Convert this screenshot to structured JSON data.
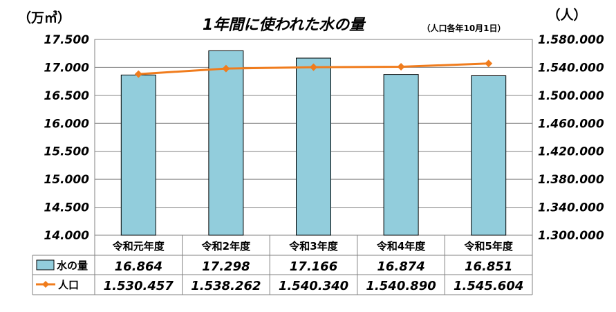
{
  "chart_data": {
    "type": "bar+line",
    "title": "1年間に使われた水の量",
    "subtitle": "（人口各年10月1日）",
    "left_unit": "（万㎥）",
    "right_unit": "（人）",
    "categories": [
      "令和元年度",
      "令和2年度",
      "令和3年度",
      "令和4年度",
      "令和5年度"
    ],
    "y_left": {
      "min": 14000,
      "max": 17500,
      "ticks": [
        "14.000",
        "14.500",
        "15.000",
        "15.500",
        "16.000",
        "16.500",
        "17.000",
        "17.500"
      ]
    },
    "y_right": {
      "min": 1300000,
      "max": 1580000,
      "ticks": [
        "1.300.000",
        "1.340.000",
        "1.380.000",
        "1.420.000",
        "1.460.000",
        "1.500.000",
        "1.540.000",
        "1.580.000"
      ]
    },
    "grid": true,
    "series": [
      {
        "name": "水の量",
        "kind": "bar",
        "axis": "left",
        "color": "#92cddc",
        "values": [
          16864,
          17298,
          17166,
          16874,
          16851
        ],
        "labels": [
          "16.864",
          "17.298",
          "17.166",
          "16.874",
          "16.851"
        ]
      },
      {
        "name": "人口",
        "kind": "line",
        "axis": "right",
        "color": "#f07c1d",
        "values": [
          1530457,
          1538262,
          1540340,
          1540890,
          1545604
        ],
        "labels": [
          "1.530.457",
          "1.538.262",
          "1.540.340",
          "1.540.890",
          "1.545.604"
        ]
      }
    ]
  }
}
